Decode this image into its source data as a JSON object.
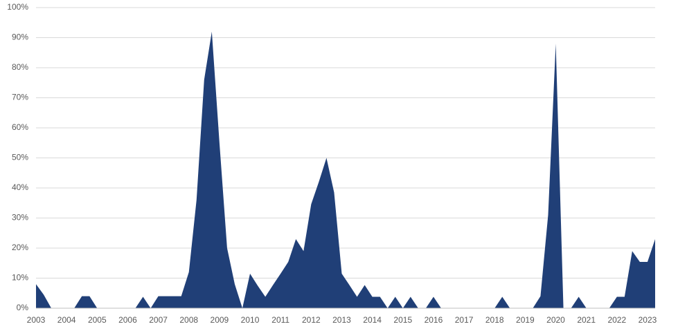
{
  "chart_data": {
    "type": "area",
    "color": "#203f77",
    "grid": true,
    "categories": [
      "2003",
      null,
      null,
      null,
      "2004",
      null,
      null,
      null,
      "2005",
      null,
      null,
      null,
      "2006",
      null,
      null,
      null,
      "2007",
      null,
      null,
      null,
      "2008",
      null,
      null,
      null,
      "2009",
      null,
      null,
      null,
      "2010",
      null,
      null,
      null,
      "2011",
      null,
      null,
      null,
      "2012",
      null,
      null,
      null,
      "2013",
      null,
      null,
      null,
      "2014",
      null,
      null,
      null,
      "2015",
      null,
      null,
      null,
      "2016",
      null,
      null,
      null,
      "2017",
      null,
      null,
      null,
      "2018",
      null,
      null,
      null,
      "2019",
      null,
      null,
      null,
      "2020",
      null,
      null,
      null,
      "2021",
      null,
      null,
      null,
      "2022",
      null,
      null,
      null,
      "2023",
      null
    ],
    "values": [
      8,
      4.5,
      0,
      0,
      0,
      0,
      4,
      4,
      0,
      0,
      0,
      0,
      0,
      0,
      3.8,
      0,
      4,
      4,
      4,
      4,
      12,
      36,
      76,
      92,
      55,
      20,
      8,
      0,
      11.5,
      7.5,
      3.8,
      7.7,
      11.5,
      15.4,
      23,
      19,
      34.6,
      42,
      50,
      38.5,
      11.5,
      7.7,
      3.8,
      7.7,
      3.8,
      3.8,
      0,
      3.8,
      0,
      3.8,
      0,
      0,
      3.8,
      0,
      0,
      0,
      0,
      0,
      0,
      0,
      0,
      3.8,
      0,
      0,
      0,
      0,
      4,
      31,
      88,
      0,
      0,
      3.8,
      0,
      0,
      0,
      0,
      3.8,
      3.8,
      19,
      15.4,
      15.4,
      23
    ],
    "ylim": [
      0,
      100
    ],
    "yticks": [
      {
        "value": 0,
        "label": "0%"
      },
      {
        "value": 10,
        "label": "10%"
      },
      {
        "value": 20,
        "label": "20%"
      },
      {
        "value": 30,
        "label": "30%"
      },
      {
        "value": 40,
        "label": "40%"
      },
      {
        "value": 50,
        "label": "50%"
      },
      {
        "value": 60,
        "label": "60%"
      },
      {
        "value": 70,
        "label": "70%"
      },
      {
        "value": 80,
        "label": "80%"
      },
      {
        "value": 90,
        "label": "90%"
      },
      {
        "value": 100,
        "label": "100%"
      }
    ]
  }
}
